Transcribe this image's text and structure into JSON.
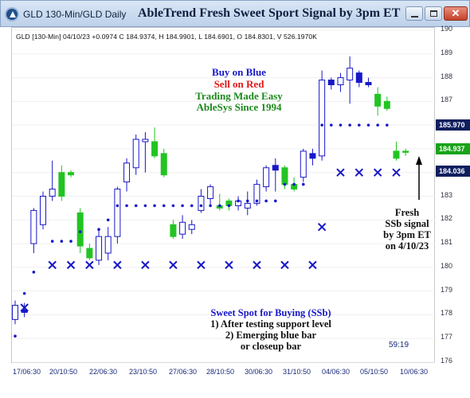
{
  "window": {
    "title": "GLD 130-Min/GLD Daily",
    "chart_title": "AbleTrend Fresh Sweet Sport Signal by 3pm ET",
    "controls": [
      "minimize-icon",
      "maximize-icon",
      "close-icon"
    ],
    "close_glyph": "✕"
  },
  "info_line": "GLD [130-Min] 04/10/23  +0.0974  C 184.9374, H 184.9901, L 184.6901, O 184.8301, V 526.1970K",
  "price_tags": {
    "resistance": "185.970",
    "last": "184.937",
    "support": "184.036"
  },
  "annotations": {
    "buy": "Buy on Blue",
    "sell": "Sell on Red",
    "trade": "Trading Made Easy",
    "since": "AbleSys Since 1994"
  },
  "fresh_note": [
    "Fresh",
    "SSb signal",
    "by 3pm ET",
    "on 4/10/23"
  ],
  "sweet_note": {
    "title": "Sweet Spot for Buying (SSb)",
    "line1": "1) After testing support level",
    "line2": "2) Emerging blue bar",
    "line3": "or closeup bar"
  },
  "clock": "59:19",
  "colors": {
    "bull": "#1818c8",
    "bear_green": "#22c422",
    "dot": "#1818c8",
    "x_marker": "#1818c8"
  },
  "chart_data": {
    "type": "candlestick",
    "y_axis": {
      "ticks": [
        190,
        189,
        188,
        187,
        186,
        185,
        184,
        183,
        182,
        181,
        180,
        179,
        178,
        177,
        176
      ],
      "range": [
        176,
        190
      ]
    },
    "x_axis": {
      "ticks": [
        "17/06:30",
        "20/10:50",
        "22/06:30",
        "23/10:50",
        "27/06:30",
        "28/10:50",
        "30/06:30",
        "31/10:50",
        "04/06:30",
        "05/10:50",
        "10/06:30"
      ]
    },
    "bars": [
      {
        "o": 177.8,
        "h": 178.6,
        "l": 177.6,
        "c": 178.4,
        "color": "blue"
      },
      {
        "o": 178.2,
        "h": 178.5,
        "l": 177.9,
        "c": 178.1,
        "color": "blue"
      },
      {
        "o": 181.0,
        "h": 182.5,
        "l": 180.6,
        "c": 182.4,
        "color": "blue"
      },
      {
        "o": 181.8,
        "h": 183.2,
        "l": 181.6,
        "c": 183.0,
        "color": "blue"
      },
      {
        "o": 183.0,
        "h": 184.5,
        "l": 182.8,
        "c": 183.3,
        "color": "blue"
      },
      {
        "o": 184.0,
        "h": 184.3,
        "l": 182.8,
        "c": 183.0,
        "color": "green"
      },
      {
        "o": 184.0,
        "h": 184.1,
        "l": 183.8,
        "c": 183.9,
        "color": "green"
      },
      {
        "o": 182.3,
        "h": 182.5,
        "l": 180.6,
        "c": 180.9,
        "color": "green"
      },
      {
        "o": 180.8,
        "h": 181.0,
        "l": 180.3,
        "c": 180.4,
        "color": "green"
      },
      {
        "o": 180.3,
        "h": 181.6,
        "l": 180.1,
        "c": 181.3,
        "color": "blue"
      },
      {
        "o": 180.6,
        "h": 181.7,
        "l": 180.3,
        "c": 181.3,
        "color": "blue"
      },
      {
        "o": 181.3,
        "h": 183.4,
        "l": 181.0,
        "c": 183.3,
        "color": "blue"
      },
      {
        "o": 183.6,
        "h": 184.6,
        "l": 183.2,
        "c": 184.4,
        "color": "blue"
      },
      {
        "o": 184.2,
        "h": 185.6,
        "l": 183.9,
        "c": 185.4,
        "color": "blue"
      },
      {
        "o": 185.3,
        "h": 185.7,
        "l": 184.0,
        "c": 185.4,
        "color": "blue"
      },
      {
        "o": 185.3,
        "h": 185.9,
        "l": 184.6,
        "c": 184.7,
        "color": "green"
      },
      {
        "o": 184.8,
        "h": 185.0,
        "l": 183.8,
        "c": 183.9,
        "color": "green"
      },
      {
        "o": 181.8,
        "h": 182.0,
        "l": 181.2,
        "c": 181.3,
        "color": "green"
      },
      {
        "o": 181.4,
        "h": 182.2,
        "l": 181.2,
        "c": 181.9,
        "color": "blue"
      },
      {
        "o": 181.6,
        "h": 182.0,
        "l": 181.4,
        "c": 181.8,
        "color": "blue"
      },
      {
        "o": 182.4,
        "h": 183.3,
        "l": 182.3,
        "c": 183.0,
        "color": "blue"
      },
      {
        "o": 182.9,
        "h": 183.5,
        "l": 182.6,
        "c": 183.4,
        "color": "blue"
      },
      {
        "o": 182.6,
        "h": 183.1,
        "l": 182.4,
        "c": 182.5,
        "color": "green"
      },
      {
        "o": 182.8,
        "h": 182.9,
        "l": 182.4,
        "c": 182.6,
        "color": "green"
      },
      {
        "o": 182.6,
        "h": 183.0,
        "l": 182.4,
        "c": 182.8,
        "color": "blue"
      },
      {
        "o": 182.5,
        "h": 183.2,
        "l": 182.2,
        "c": 182.7,
        "color": "blue"
      },
      {
        "o": 182.7,
        "h": 183.7,
        "l": 182.6,
        "c": 183.5,
        "color": "blue"
      },
      {
        "o": 183.4,
        "h": 184.3,
        "l": 183.2,
        "c": 184.2,
        "color": "blue"
      },
      {
        "o": 184.3,
        "h": 184.6,
        "l": 183.2,
        "c": 184.1,
        "color": "blue"
      },
      {
        "o": 184.2,
        "h": 184.3,
        "l": 183.3,
        "c": 183.5,
        "color": "green"
      },
      {
        "o": 183.3,
        "h": 183.8,
        "l": 183.2,
        "c": 183.5,
        "color": "green"
      },
      {
        "o": 183.8,
        "h": 185.0,
        "l": 183.6,
        "c": 184.9,
        "color": "blue"
      },
      {
        "o": 184.8,
        "h": 185.0,
        "l": 184.3,
        "c": 184.6,
        "color": "blue"
      },
      {
        "o": 184.7,
        "h": 188.3,
        "l": 184.5,
        "c": 187.9,
        "color": "blue"
      },
      {
        "o": 187.9,
        "h": 188.0,
        "l": 187.5,
        "c": 187.7,
        "color": "blue"
      },
      {
        "o": 187.7,
        "h": 188.2,
        "l": 187.4,
        "c": 188.0,
        "color": "blue"
      },
      {
        "o": 187.9,
        "h": 188.9,
        "l": 186.9,
        "c": 188.4,
        "color": "blue"
      },
      {
        "o": 188.2,
        "h": 188.3,
        "l": 187.6,
        "c": 187.8,
        "color": "blue"
      },
      {
        "o": 187.8,
        "h": 188.0,
        "l": 187.6,
        "c": 187.7,
        "color": "blue"
      },
      {
        "o": 187.3,
        "h": 187.6,
        "l": 186.4,
        "c": 186.8,
        "color": "green"
      },
      {
        "o": 187.0,
        "h": 187.2,
        "l": 186.6,
        "c": 186.7,
        "color": "green"
      },
      {
        "o": 184.9,
        "h": 185.3,
        "l": 184.5,
        "c": 184.6,
        "color": "green"
      },
      {
        "o": 184.9,
        "h": 185.0,
        "l": 184.7,
        "c": 184.9,
        "color": "green"
      }
    ],
    "support_resistance_dots": [
      {
        "bar": 0,
        "y": 177.1
      },
      {
        "bar": 1,
        "y": 178.9
      },
      {
        "bar": 2,
        "y": 179.8
      },
      {
        "bar": 4,
        "y": 181.1
      },
      {
        "bar": 5,
        "y": 181.1
      },
      {
        "bar": 6,
        "y": 181.1
      },
      {
        "bar": 7,
        "y": 181.5
      },
      {
        "bar": 9,
        "y": 181.6
      },
      {
        "bar": 10,
        "y": 182.0
      },
      {
        "bar": 11,
        "y": 182.6
      },
      {
        "bar": 12,
        "y": 182.6
      },
      {
        "bar": 13,
        "y": 182.6
      },
      {
        "bar": 14,
        "y": 182.6
      },
      {
        "bar": 15,
        "y": 182.6
      },
      {
        "bar": 16,
        "y": 182.6
      },
      {
        "bar": 17,
        "y": 182.6
      },
      {
        "bar": 18,
        "y": 182.6
      },
      {
        "bar": 19,
        "y": 182.6
      },
      {
        "bar": 20,
        "y": 182.6
      },
      {
        "bar": 21,
        "y": 182.6
      },
      {
        "bar": 22,
        "y": 182.6
      },
      {
        "bar": 23,
        "y": 182.6
      },
      {
        "bar": 24,
        "y": 182.8
      },
      {
        "bar": 25,
        "y": 182.8
      },
      {
        "bar": 26,
        "y": 182.8
      },
      {
        "bar": 27,
        "y": 182.8
      },
      {
        "bar": 28,
        "y": 182.8
      },
      {
        "bar": 29,
        "y": 183.5
      },
      {
        "bar": 30,
        "y": 183.5
      },
      {
        "bar": 31,
        "y": 183.5
      },
      {
        "bar": 33,
        "y": 186.0
      },
      {
        "bar": 34,
        "y": 186.0
      },
      {
        "bar": 35,
        "y": 186.0
      },
      {
        "bar": 36,
        "y": 186.0
      },
      {
        "bar": 37,
        "y": 186.0
      },
      {
        "bar": 38,
        "y": 186.0
      },
      {
        "bar": 39,
        "y": 186.0
      },
      {
        "bar": 40,
        "y": 186.0
      }
    ],
    "x_markers": [
      {
        "bar": 1,
        "y": 178.3
      },
      {
        "bar": 4,
        "y": 180.1
      },
      {
        "bar": 6,
        "y": 180.1
      },
      {
        "bar": 8,
        "y": 180.1
      },
      {
        "bar": 11,
        "y": 180.1
      },
      {
        "bar": 14,
        "y": 180.1
      },
      {
        "bar": 17,
        "y": 180.1
      },
      {
        "bar": 20,
        "y": 180.1
      },
      {
        "bar": 23,
        "y": 180.1
      },
      {
        "bar": 26,
        "y": 180.1
      },
      {
        "bar": 29,
        "y": 180.1
      },
      {
        "bar": 32,
        "y": 180.1
      },
      {
        "bar": 33,
        "y": 181.7
      },
      {
        "bar": 35,
        "y": 184.0
      },
      {
        "bar": 37,
        "y": 184.0
      },
      {
        "bar": 39,
        "y": 184.0
      },
      {
        "bar": 41,
        "y": 184.0
      }
    ]
  }
}
